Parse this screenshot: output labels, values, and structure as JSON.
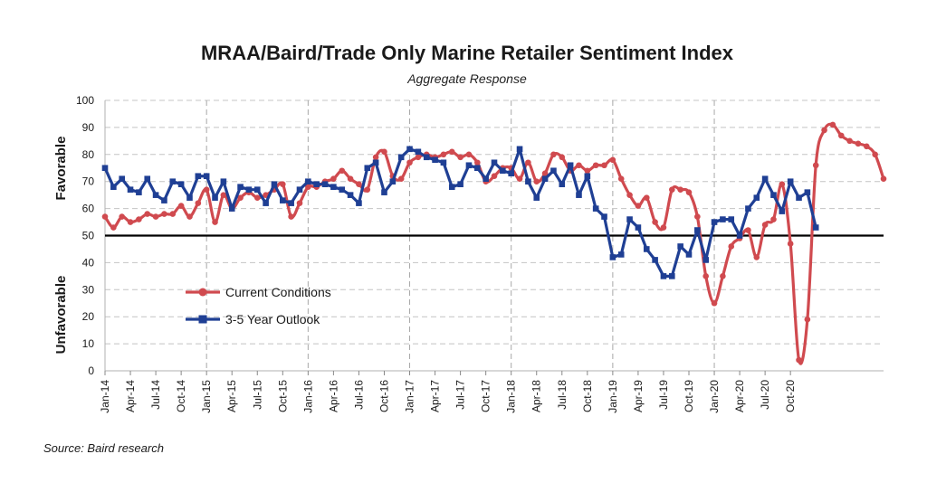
{
  "chart_data": {
    "type": "line",
    "title": "MRAA/Baird/Trade Only Marine Retailer Sentiment Index",
    "subtitle": "Aggregate Response",
    "source": "Source: Baird research",
    "ylabel_favorable": "Favorable",
    "ylabel_unfavorable": "Unfavorable",
    "ylim": [
      0,
      100
    ],
    "ytick_step": 10,
    "reference_line": 50,
    "legend_position": "center-left",
    "x_tick_labels": [
      "Jan-14",
      "Apr-14",
      "Jul-14",
      "Oct-14",
      "Jan-15",
      "Apr-15",
      "Jul-15",
      "Oct-15",
      "Jan-16",
      "Apr-16",
      "Jul-16",
      "Oct-16",
      "Jan-17",
      "Apr-17",
      "Jul-17",
      "Oct-17",
      "Jan-18",
      "Apr-18",
      "Jul-18",
      "Oct-18",
      "Jan-19",
      "Apr-19",
      "Jul-19",
      "Oct-19",
      "Jan-20",
      "Apr-20",
      "Jul-20",
      "Oct-20"
    ],
    "vertical_gridline_labels": [
      "Jan-15",
      "Jan-16",
      "Jan-17",
      "Jan-18",
      "Jan-19",
      "Jan-20"
    ],
    "series": [
      {
        "name": "Current Conditions",
        "color": "#d04a4f",
        "marker": "circle",
        "smooth": true,
        "values": [
          57,
          53,
          57,
          55,
          56,
          58,
          57,
          58,
          58,
          61,
          57,
          62,
          67,
          55,
          65,
          60,
          64,
          66,
          64,
          65,
          67,
          69,
          57,
          62,
          68,
          68,
          70,
          71,
          74,
          71,
          69,
          67,
          79,
          81,
          72,
          71,
          77,
          79,
          80,
          79,
          80,
          81,
          79,
          80,
          77,
          70,
          72,
          75,
          75,
          71,
          77,
          70,
          73,
          80,
          79,
          74,
          76,
          74,
          76,
          76,
          78,
          71,
          65,
          61,
          64,
          55,
          53,
          67,
          67,
          66,
          57,
          35,
          25,
          35,
          46,
          49,
          52,
          42,
          54,
          56,
          69,
          47,
          4,
          19,
          76,
          89,
          91,
          87,
          85,
          84,
          83,
          80,
          71
        ]
      },
      {
        "name": "3-5 Year Outlook",
        "color": "#1f3f94",
        "marker": "square",
        "smooth": false,
        "values": [
          75,
          68,
          71,
          67,
          66,
          71,
          65,
          63,
          70,
          69,
          64,
          72,
          72,
          64,
          70,
          60,
          68,
          67,
          67,
          62,
          69,
          63,
          62,
          67,
          70,
          69,
          69,
          68,
          67,
          65,
          62,
          75,
          77,
          66,
          70,
          79,
          82,
          81,
          79,
          78,
          77,
          68,
          69,
          76,
          75,
          71,
          77,
          74,
          73,
          82,
          70,
          64,
          71,
          74,
          69,
          76,
          65,
          72,
          60,
          57,
          42,
          43,
          56,
          53,
          45,
          41,
          35,
          35,
          46,
          43,
          52,
          41,
          55,
          56,
          56,
          50,
          60,
          64,
          71,
          65,
          59,
          70,
          64,
          66,
          53
        ]
      }
    ]
  }
}
